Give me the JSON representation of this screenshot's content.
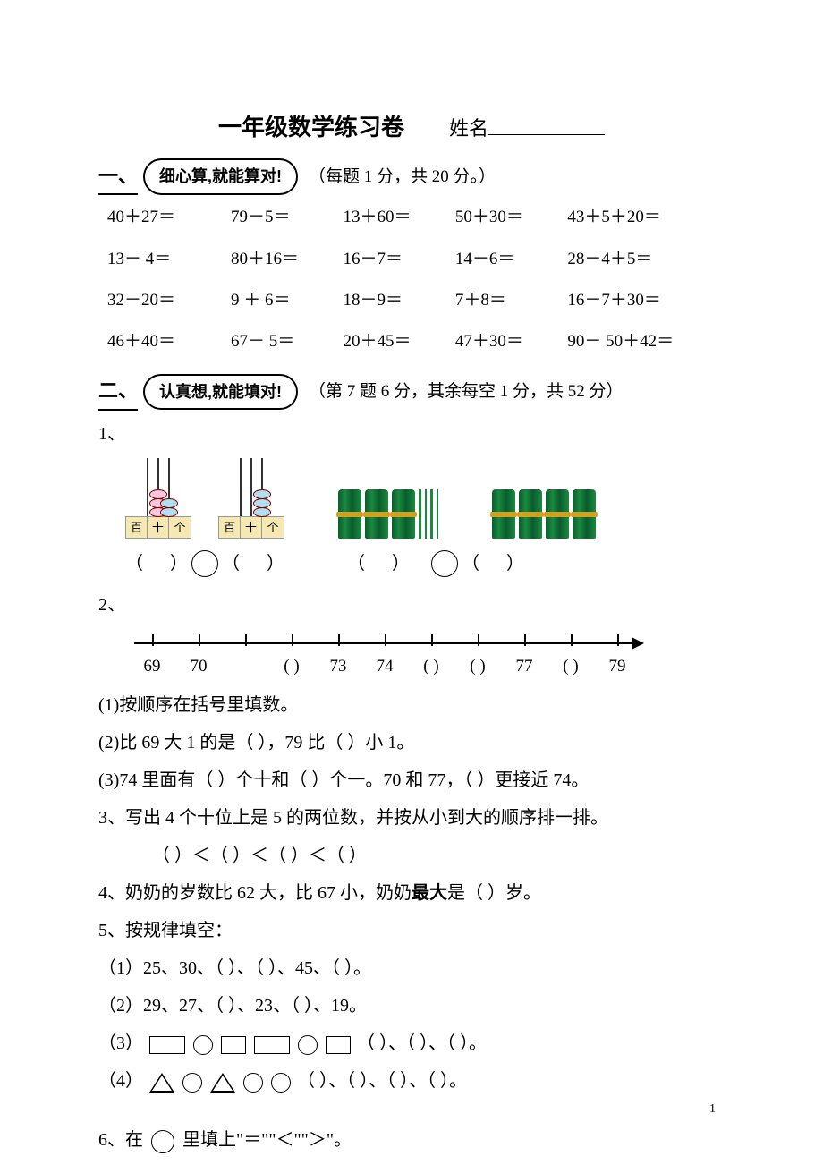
{
  "title": "一年级数学练习卷",
  "name_label": "姓名",
  "page_number": "1",
  "section1": {
    "num": "一、",
    "bubble": "细心算,就能算对!",
    "scoring": "（每题 1 分，共 20 分。）",
    "rows": [
      [
        "40＋27＝",
        "79－5＝",
        "13＋60＝",
        "50＋30＝",
        "43＋5＋20＝"
      ],
      [
        "13－ 4＝",
        "80＋16＝",
        "16－7＝",
        "14－6＝",
        "28－4＋5＝"
      ],
      [
        "32－20＝",
        "9 ＋ 6＝",
        "18－9＝",
        "7＋8＝",
        "16－7＋30＝"
      ],
      [
        "46＋40＝",
        "67－ 5＝",
        "20＋45＝",
        "47＋30＝",
        "90－ 50＋42＝"
      ]
    ]
  },
  "section2": {
    "num": "二、",
    "bubble": "认真想,就能填对!",
    "scoring": "（第 7 题 6 分，其余每空 1 分，共 52 分）"
  },
  "q1_label": "1、",
  "abacus_cols": [
    "百",
    "十",
    "个"
  ],
  "abacus1_beads": [
    0,
    3,
    2
  ],
  "abacus2_beads": [
    0,
    0,
    3
  ],
  "bundles1": {
    "bundles": 3,
    "sticks": 4
  },
  "bundles2": {
    "bundles": 4,
    "sticks": 0
  },
  "q2_label": "2、",
  "numline_labels": [
    "69",
    "70",
    "",
    "(   )",
    "73",
    "74",
    "(  )",
    "(  )",
    "77",
    "(   )",
    "79"
  ],
  "q2_1": "(1)按顺序在括号里填数。",
  "q2_2": "(2)比 69 大 1 的是（    ），79 比（    ）小 1。",
  "q2_3": "(3)74 里面有（   ）个十和（   ）个一。70 和 77，（    ）更接近 74。",
  "q3": "3、写出 4 个十位上是 5 的两位数，并按从小到大的顺序排一排。",
  "q3_blanks": "（    ）＜（    ）＜（    ）＜（    ）",
  "q4_pre": "4、奶奶的岁数比 62 大，比 67 小，奶奶",
  "q4_bold": "最大",
  "q4_post": "是（     ）岁。",
  "q5": "5、按规律填空：",
  "q5_1": "（1）25、30、（     ）、（     ）、45、（     ）。",
  "q5_2": "（2）29、27、（     ）、23、（     ）、19。",
  "q5_3_pre": "（3）",
  "q5_3_post": "（     ）、（     ）、（     ）。",
  "q5_4_pre": "（4）",
  "q5_4_post": "（     ）、（     ）、（     ）、（     ）。",
  "q6_pre": "6、在",
  "q6_post": "里填上\"＝\"\"＜\"\"＞\"。"
}
